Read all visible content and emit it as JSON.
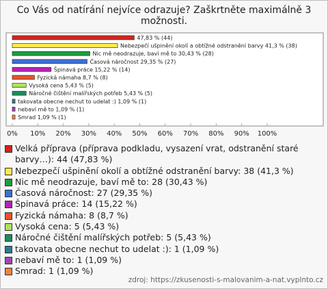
{
  "chart_data": {
    "type": "bar",
    "orientation": "horizontal",
    "title": "Co Vás od natírání nejvíce odrazuje? Zaškrtněte maximálně 3 možnosti.",
    "categories": [
      "Velká příprava (příprava podkladu, vysazení vrat, odstranění staré barvy…): 44 (47,83 %)",
      "Nebezpečí ušpinění okolí a obtížné odstranění barvy: 38 (41,3 %)",
      "Nic mě neodrazuje, baví mě to: 28 (30,43 %)",
      "Časová náročnost: 27 (29,35 %)",
      "Špinavá práce: 14 (15,22 %)",
      "Fyzická námaha: 8 (8,7 %)",
      "Vysoká cena: 5 (5,43 %)",
      "Náročné čištění malířských potřeb: 5 (5,43 %)",
      "takovata obecne nechut to udelat :): 1 (1,09 %)",
      "nebaví mě to: 1 (1,09 %)",
      "Smrad: 1 (1,09 %)"
    ],
    "values": [
      47.83,
      41.3,
      30.43,
      29.35,
      15.22,
      8.7,
      5.43,
      5.43,
      1.09,
      1.09,
      1.09
    ],
    "value_labels": [
      "47,83 % (44)",
      "Nebezpečí ušpinění okolí a obtížné odstranění barvy 41,3 % (38)",
      "Nic mě neodrazuje, baví mě to 30,43 % (28)",
      "Časová náročnost 29,35 % (27)",
      "Špinavá práce 15,22 % (14)",
      "Fyzická námaha 8,7 % (8)",
      "Vysoká cena 5,43 % (5)",
      "Náročné čištění malířských potřeb 5,43 % (5)",
      "takovata obecne nechut to udelat :) 1,09 % (1)",
      "nebaví mě to 1,09 % (1)",
      "Smrad 1,09 % (1)"
    ],
    "colors": [
      "#d0251c",
      "#ffea4f",
      "#1c9e3c",
      "#3d6fd6",
      "#b424b4",
      "#e8532b",
      "#aee35c",
      "#1b8d5a",
      "#2a7d8c",
      "#a246b4",
      "#f28243"
    ],
    "xlim": [
      0,
      100
    ],
    "xticks": [
      {
        "value": 0,
        "label": "0%"
      },
      {
        "value": 10,
        "label": "10%"
      },
      {
        "value": 20,
        "label": "20%"
      },
      {
        "value": 30,
        "label": "30%"
      },
      {
        "value": 40,
        "label": "40%"
      },
      {
        "value": 50,
        "label": "50%"
      },
      {
        "value": 60,
        "label": "60%"
      },
      {
        "value": 70,
        "label": "70%"
      },
      {
        "value": 80,
        "label": "80%"
      },
      {
        "value": 90,
        "label": "90%"
      },
      {
        "value": 100,
        "label": "100%"
      }
    ],
    "source": "zdroj: https://zkusenosti-s-malovanim-a-nat.vyplnto.cz"
  }
}
